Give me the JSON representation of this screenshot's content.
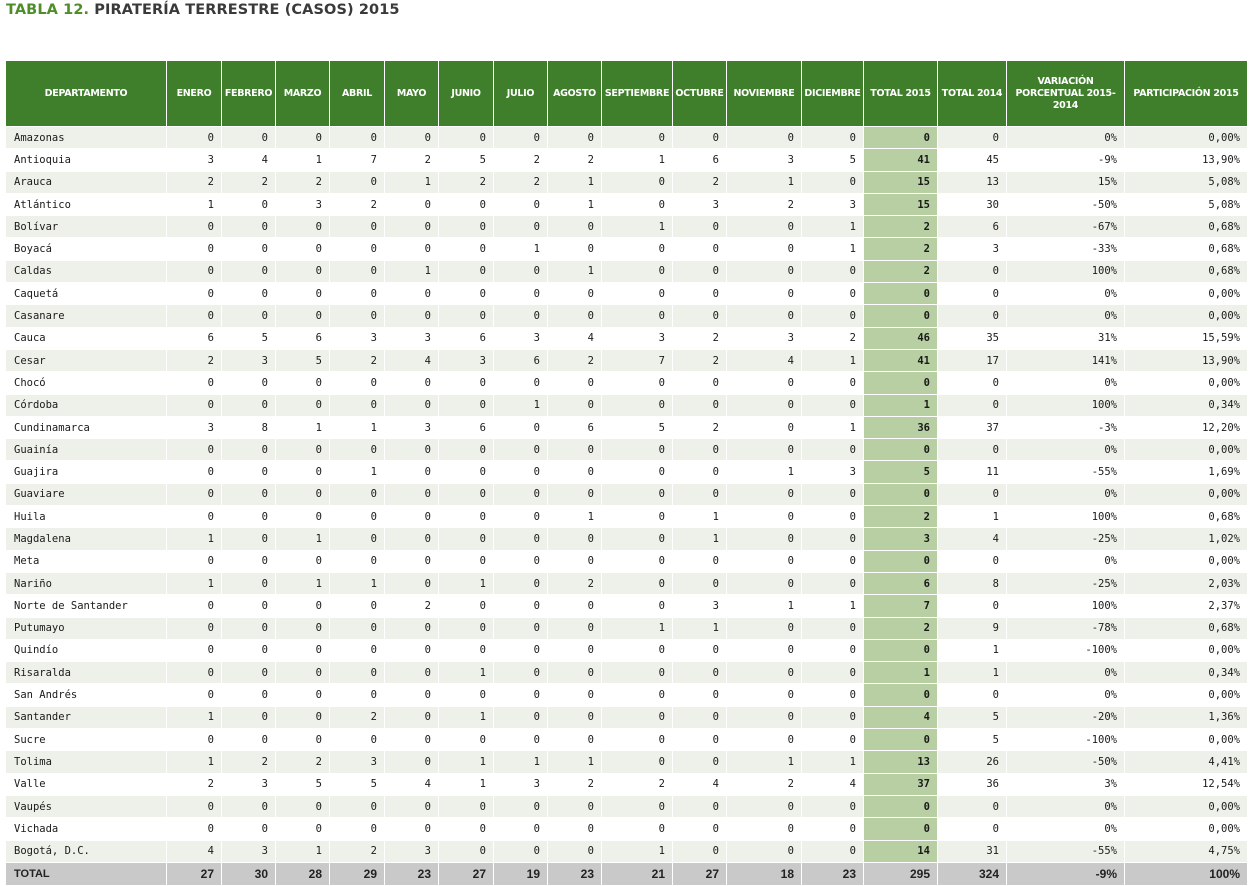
{
  "title": {
    "prefix": "TABLA 12.",
    "text": "PIRATERÍA TERRESTRE (CASOS) 2015"
  },
  "headers": [
    "DEPARTAMENTO",
    "ENERO",
    "FEBRERO",
    "MARZO",
    "ABRIL",
    "MAYO",
    "JUNIO",
    "JULIO",
    "AGOSTO",
    "SEPTIEMBRE",
    "OCTUBRE",
    "NOVIEMBRE",
    "DICIEMBRE",
    "TOTAL 2015",
    "TOTAL 2014",
    "VARIACIÓN PORCENTUAL 2015-2014",
    "PARTICIPACIÓN 2015"
  ],
  "rows": [
    [
      "Amazonas",
      "0",
      "0",
      "0",
      "0",
      "0",
      "0",
      "0",
      "0",
      "0",
      "0",
      "0",
      "0",
      "0",
      "0",
      "0%",
      "0,00%"
    ],
    [
      "Antioquia",
      "3",
      "4",
      "1",
      "7",
      "2",
      "5",
      "2",
      "2",
      "1",
      "6",
      "3",
      "5",
      "41",
      "45",
      "-9%",
      "13,90%"
    ],
    [
      "Arauca",
      "2",
      "2",
      "2",
      "0",
      "1",
      "2",
      "2",
      "1",
      "0",
      "2",
      "1",
      "0",
      "15",
      "13",
      "15%",
      "5,08%"
    ],
    [
      "Atlántico",
      "1",
      "0",
      "3",
      "2",
      "0",
      "0",
      "0",
      "1",
      "0",
      "3",
      "2",
      "3",
      "15",
      "30",
      "-50%",
      "5,08%"
    ],
    [
      "Bolívar",
      "0",
      "0",
      "0",
      "0",
      "0",
      "0",
      "0",
      "0",
      "1",
      "0",
      "0",
      "1",
      "2",
      "6",
      "-67%",
      "0,68%"
    ],
    [
      "Boyacá",
      "0",
      "0",
      "0",
      "0",
      "0",
      "0",
      "1",
      "0",
      "0",
      "0",
      "0",
      "1",
      "2",
      "3",
      "-33%",
      "0,68%"
    ],
    [
      "Caldas",
      "0",
      "0",
      "0",
      "0",
      "1",
      "0",
      "0",
      "1",
      "0",
      "0",
      "0",
      "0",
      "2",
      "0",
      "100%",
      "0,68%"
    ],
    [
      "Caquetá",
      "0",
      "0",
      "0",
      "0",
      "0",
      "0",
      "0",
      "0",
      "0",
      "0",
      "0",
      "0",
      "0",
      "0",
      "0%",
      "0,00%"
    ],
    [
      "Casanare",
      "0",
      "0",
      "0",
      "0",
      "0",
      "0",
      "0",
      "0",
      "0",
      "0",
      "0",
      "0",
      "0",
      "0",
      "0%",
      "0,00%"
    ],
    [
      "Cauca",
      "6",
      "5",
      "6",
      "3",
      "3",
      "6",
      "3",
      "4",
      "3",
      "2",
      "3",
      "2",
      "46",
      "35",
      "31%",
      "15,59%"
    ],
    [
      "Cesar",
      "2",
      "3",
      "5",
      "2",
      "4",
      "3",
      "6",
      "2",
      "7",
      "2",
      "4",
      "1",
      "41",
      "17",
      "141%",
      "13,90%"
    ],
    [
      "Chocó",
      "0",
      "0",
      "0",
      "0",
      "0",
      "0",
      "0",
      "0",
      "0",
      "0",
      "0",
      "0",
      "0",
      "0",
      "0%",
      "0,00%"
    ],
    [
      "Córdoba",
      "0",
      "0",
      "0",
      "0",
      "0",
      "0",
      "1",
      "0",
      "0",
      "0",
      "0",
      "0",
      "1",
      "0",
      "100%",
      "0,34%"
    ],
    [
      "Cundinamarca",
      "3",
      "8",
      "1",
      "1",
      "3",
      "6",
      "0",
      "6",
      "5",
      "2",
      "0",
      "1",
      "36",
      "37",
      "-3%",
      "12,20%"
    ],
    [
      "Guainía",
      "0",
      "0",
      "0",
      "0",
      "0",
      "0",
      "0",
      "0",
      "0",
      "0",
      "0",
      "0",
      "0",
      "0",
      "0%",
      "0,00%"
    ],
    [
      "Guajira",
      "0",
      "0",
      "0",
      "1",
      "0",
      "0",
      "0",
      "0",
      "0",
      "0",
      "1",
      "3",
      "5",
      "11",
      "-55%",
      "1,69%"
    ],
    [
      "Guaviare",
      "0",
      "0",
      "0",
      "0",
      "0",
      "0",
      "0",
      "0",
      "0",
      "0",
      "0",
      "0",
      "0",
      "0",
      "0%",
      "0,00%"
    ],
    [
      "Huila",
      "0",
      "0",
      "0",
      "0",
      "0",
      "0",
      "0",
      "1",
      "0",
      "1",
      "0",
      "0",
      "2",
      "1",
      "100%",
      "0,68%"
    ],
    [
      "Magdalena",
      "1",
      "0",
      "1",
      "0",
      "0",
      "0",
      "0",
      "0",
      "0",
      "1",
      "0",
      "0",
      "3",
      "4",
      "-25%",
      "1,02%"
    ],
    [
      "Meta",
      "0",
      "0",
      "0",
      "0",
      "0",
      "0",
      "0",
      "0",
      "0",
      "0",
      "0",
      "0",
      "0",
      "0",
      "0%",
      "0,00%"
    ],
    [
      "Nariño",
      "1",
      "0",
      "1",
      "1",
      "0",
      "1",
      "0",
      "2",
      "0",
      "0",
      "0",
      "0",
      "6",
      "8",
      "-25%",
      "2,03%"
    ],
    [
      "Norte de Santander",
      "0",
      "0",
      "0",
      "0",
      "2",
      "0",
      "0",
      "0",
      "0",
      "3",
      "1",
      "1",
      "7",
      "0",
      "100%",
      "2,37%"
    ],
    [
      "Putumayo",
      "0",
      "0",
      "0",
      "0",
      "0",
      "0",
      "0",
      "0",
      "1",
      "1",
      "0",
      "0",
      "2",
      "9",
      "-78%",
      "0,68%"
    ],
    [
      "Quindío",
      "0",
      "0",
      "0",
      "0",
      "0",
      "0",
      "0",
      "0",
      "0",
      "0",
      "0",
      "0",
      "0",
      "1",
      "-100%",
      "0,00%"
    ],
    [
      "Risaralda",
      "0",
      "0",
      "0",
      "0",
      "0",
      "1",
      "0",
      "0",
      "0",
      "0",
      "0",
      "0",
      "1",
      "1",
      "0%",
      "0,34%"
    ],
    [
      "San Andrés",
      "0",
      "0",
      "0",
      "0",
      "0",
      "0",
      "0",
      "0",
      "0",
      "0",
      "0",
      "0",
      "0",
      "0",
      "0%",
      "0,00%"
    ],
    [
      "Santander",
      "1",
      "0",
      "0",
      "2",
      "0",
      "1",
      "0",
      "0",
      "0",
      "0",
      "0",
      "0",
      "4",
      "5",
      "-20%",
      "1,36%"
    ],
    [
      "Sucre",
      "0",
      "0",
      "0",
      "0",
      "0",
      "0",
      "0",
      "0",
      "0",
      "0",
      "0",
      "0",
      "0",
      "5",
      "-100%",
      "0,00%"
    ],
    [
      "Tolima",
      "1",
      "2",
      "2",
      "3",
      "0",
      "1",
      "1",
      "1",
      "0",
      "0",
      "1",
      "1",
      "13",
      "26",
      "-50%",
      "4,41%"
    ],
    [
      "Valle",
      "2",
      "3",
      "5",
      "5",
      "4",
      "1",
      "3",
      "2",
      "2",
      "4",
      "2",
      "4",
      "37",
      "36",
      "3%",
      "12,54%"
    ],
    [
      "Vaupés",
      "0",
      "0",
      "0",
      "0",
      "0",
      "0",
      "0",
      "0",
      "0",
      "0",
      "0",
      "0",
      "0",
      "0",
      "0%",
      "0,00%"
    ],
    [
      "Vichada",
      "0",
      "0",
      "0",
      "0",
      "0",
      "0",
      "0",
      "0",
      "0",
      "0",
      "0",
      "0",
      "0",
      "0",
      "0%",
      "0,00%"
    ],
    [
      "Bogotá, D.C.",
      "4",
      "3",
      "1",
      "2",
      "3",
      "0",
      "0",
      "0",
      "1",
      "0",
      "0",
      "0",
      "14",
      "31",
      "-55%",
      "4,75%"
    ]
  ],
  "total": [
    "TOTAL",
    "27",
    "30",
    "28",
    "29",
    "23",
    "27",
    "19",
    "23",
    "21",
    "27",
    "18",
    "23",
    "295",
    "324",
    "-9%",
    "100%"
  ]
}
